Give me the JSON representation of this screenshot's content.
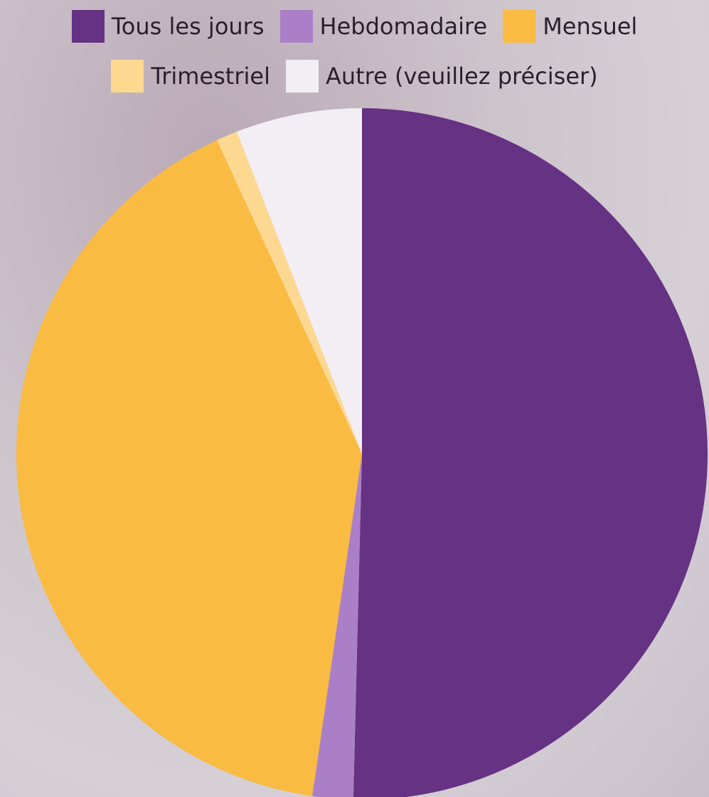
{
  "chart_data": {
    "type": "pie",
    "categories": [
      "Tous les jours",
      "Hebdomadaire",
      "Mensuel",
      "Trimestriel",
      "Autre (veuillez préciser)"
    ],
    "values": [
      50.4,
      1.9,
      40.8,
      1,
      5.9
    ],
    "colors": [
      "#663283",
      "#ab7fc7",
      "#f9bb42",
      "#fdd891",
      "#f3eef4"
    ]
  }
}
